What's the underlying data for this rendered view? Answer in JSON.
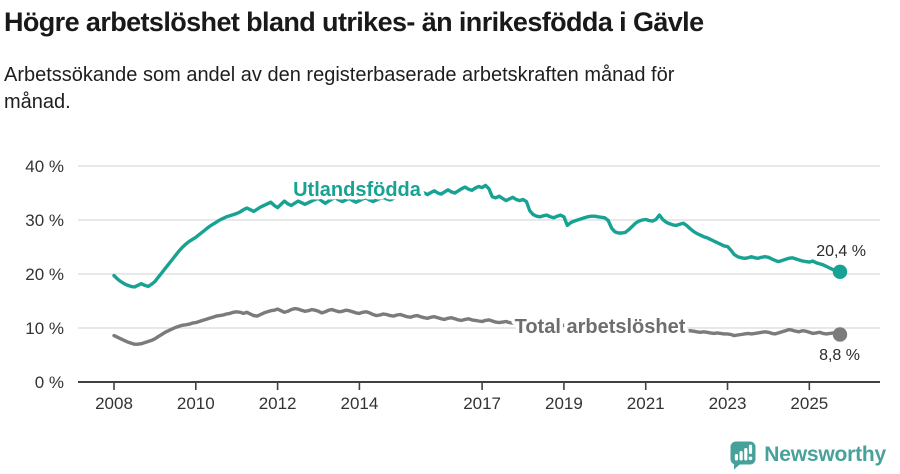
{
  "header": {
    "title": "Högre arbetslöshet bland utrikes- än inrikesfödda i Gävle",
    "subtitle": "Arbetssökande som andel av den registerbaserade arbetskraften månad för månad."
  },
  "chart_data": {
    "type": "line",
    "title": "Högre arbetslöshet bland utrikes- än inrikesfödda i Gävle",
    "subtitle": "Arbetssökande som andel av den registerbaserade arbetskraften månad för månad.",
    "xlabel": "",
    "ylabel": "",
    "x_interval": "month",
    "x_range": [
      "2008-01",
      "2025-10"
    ],
    "ylim": [
      0,
      40
    ],
    "grid": "horizontal",
    "legend_position": "inline-labels",
    "y_axis": {
      "ticks": [
        {
          "value": 0,
          "label": "0 %"
        },
        {
          "value": 10,
          "label": "10 %"
        },
        {
          "value": 20,
          "label": "20 %"
        },
        {
          "value": 30,
          "label": "30 %"
        },
        {
          "value": 40,
          "label": "40 %"
        }
      ]
    },
    "x_axis": {
      "ticks": [
        {
          "year": 2008,
          "label": "2008"
        },
        {
          "year": 2010,
          "label": "2010"
        },
        {
          "year": 2012,
          "label": "2012"
        },
        {
          "year": 2014,
          "label": "2014"
        },
        {
          "year": 2017,
          "label": "2017"
        },
        {
          "year": 2019,
          "label": "2019"
        },
        {
          "year": 2021,
          "label": "2021"
        },
        {
          "year": 2023,
          "label": "2023"
        },
        {
          "year": 2025,
          "label": "2025"
        }
      ]
    },
    "series": [
      {
        "name": "Utlandsfödda",
        "color": "#18a294",
        "end_label": "20,4 %",
        "end_value": 20.4,
        "values": [
          19.7,
          19.1,
          18.6,
          18.2,
          17.9,
          17.7,
          17.6,
          17.9,
          18.2,
          17.9,
          17.7,
          18.1,
          18.6,
          19.4,
          20.2,
          21.0,
          21.8,
          22.6,
          23.4,
          24.2,
          24.9,
          25.5,
          26.0,
          26.4,
          26.8,
          27.3,
          27.8,
          28.3,
          28.8,
          29.2,
          29.6,
          30.0,
          30.3,
          30.6,
          30.8,
          31.0,
          31.2,
          31.5,
          31.9,
          32.2,
          31.9,
          31.6,
          32.0,
          32.4,
          32.7,
          33.0,
          33.3,
          32.7,
          32.3,
          32.9,
          33.5,
          33.0,
          32.7,
          33.1,
          33.5,
          33.2,
          32.9,
          33.2,
          33.5,
          33.8,
          34.0,
          33.5,
          33.1,
          33.5,
          33.9,
          34.1,
          33.7,
          33.4,
          33.7,
          34.0,
          33.6,
          33.3,
          33.6,
          33.9,
          34.1,
          33.7,
          33.4,
          33.7,
          34.0,
          34.2,
          33.9,
          33.7,
          34.0,
          34.3,
          34.5,
          34.2,
          34.6,
          34.9,
          34.6,
          34.4,
          34.7,
          35.0,
          34.7,
          35.1,
          35.4,
          35.0,
          34.8,
          35.2,
          35.6,
          35.2,
          35.0,
          35.4,
          35.8,
          36.1,
          35.7,
          35.5,
          35.9,
          36.2,
          36.0,
          36.4,
          35.8,
          34.3,
          34.1,
          34.4,
          34.0,
          33.6,
          33.9,
          34.2,
          33.8,
          33.6,
          33.8,
          33.4,
          31.7,
          31.0,
          30.7,
          30.6,
          30.8,
          30.9,
          30.6,
          30.4,
          30.7,
          30.9,
          30.6,
          29.0,
          29.5,
          29.8,
          30.0,
          30.2,
          30.4,
          30.6,
          30.7,
          30.7,
          30.6,
          30.5,
          30.4,
          29.9,
          28.5,
          27.8,
          27.6,
          27.6,
          27.7,
          28.2,
          28.8,
          29.4,
          29.8,
          30.0,
          30.1,
          29.9,
          29.8,
          30.1,
          30.9,
          30.1,
          29.6,
          29.3,
          29.1,
          29.0,
          29.2,
          29.4,
          29.0,
          28.4,
          27.9,
          27.5,
          27.2,
          26.9,
          26.7,
          26.4,
          26.1,
          25.8,
          25.5,
          25.2,
          25.1,
          24.4,
          23.6,
          23.2,
          23.0,
          22.9,
          23.0,
          23.2,
          23.0,
          22.9,
          23.1,
          23.2,
          23.1,
          22.8,
          22.5,
          22.3,
          22.5,
          22.7,
          22.9,
          23.0,
          22.8,
          22.6,
          22.4,
          22.3,
          22.2,
          22.4,
          22.1,
          21.9,
          21.7,
          21.4,
          21.1,
          20.8,
          20.6,
          20.4
        ]
      },
      {
        "name": "Total arbetslöshet",
        "color": "#7b7b7b",
        "end_label": "8,8 %",
        "end_value": 8.8,
        "values": [
          8.6,
          8.3,
          8.0,
          7.7,
          7.4,
          7.2,
          7.0,
          7.0,
          7.1,
          7.3,
          7.5,
          7.7,
          8.0,
          8.4,
          8.8,
          9.2,
          9.5,
          9.8,
          10.1,
          10.3,
          10.5,
          10.6,
          10.7,
          10.9,
          11.0,
          11.2,
          11.4,
          11.6,
          11.8,
          12.0,
          12.2,
          12.3,
          12.4,
          12.6,
          12.7,
          12.9,
          13.0,
          12.9,
          12.7,
          12.9,
          12.6,
          12.3,
          12.2,
          12.5,
          12.8,
          13.0,
          13.2,
          13.3,
          13.5,
          13.2,
          12.9,
          13.1,
          13.4,
          13.6,
          13.5,
          13.3,
          13.1,
          13.2,
          13.4,
          13.3,
          13.1,
          12.8,
          13.0,
          13.3,
          13.4,
          13.2,
          13.0,
          13.1,
          13.3,
          13.2,
          13.0,
          12.8,
          12.7,
          12.9,
          13.0,
          12.8,
          12.5,
          12.3,
          12.4,
          12.6,
          12.5,
          12.3,
          12.2,
          12.4,
          12.5,
          12.3,
          12.1,
          12.0,
          12.2,
          12.3,
          12.1,
          11.9,
          11.8,
          12.0,
          12.1,
          11.9,
          11.7,
          11.6,
          11.8,
          11.9,
          11.7,
          11.5,
          11.4,
          11.6,
          11.7,
          11.5,
          11.4,
          11.3,
          11.2,
          11.4,
          11.5,
          11.3,
          11.1,
          11.0,
          11.1,
          11.2,
          11.0,
          10.9,
          11.0,
          11.1,
          11.0,
          10.8,
          10.7,
          10.8,
          10.9,
          10.7,
          10.5,
          10.6,
          10.7,
          10.6,
          10.5,
          10.4,
          10.5,
          10.6,
          10.4,
          10.3,
          10.4,
          10.5,
          10.3,
          10.2,
          10.3,
          10.4,
          10.3,
          10.2,
          10.3,
          10.5,
          10.8,
          11.0,
          11.2,
          11.1,
          10.9,
          10.8,
          10.6,
          10.4,
          10.2,
          10.0,
          9.9,
          9.8,
          9.7,
          9.6,
          9.7,
          9.6,
          9.5,
          9.4,
          9.5,
          9.4,
          9.5,
          9.4,
          9.4,
          9.5,
          9.4,
          9.3,
          9.2,
          9.3,
          9.2,
          9.1,
          9.0,
          9.1,
          9.0,
          8.9,
          8.9,
          8.8,
          8.6,
          8.7,
          8.8,
          8.9,
          9.0,
          8.9,
          9.0,
          9.1,
          9.2,
          9.3,
          9.2,
          9.0,
          8.9,
          9.1,
          9.3,
          9.5,
          9.7,
          9.6,
          9.4,
          9.3,
          9.5,
          9.4,
          9.2,
          9.0,
          9.1,
          9.2,
          9.0,
          8.9,
          9.0,
          9.1,
          8.9,
          8.8
        ]
      }
    ],
    "colors": {
      "grid": "#d9d9d9",
      "axis": "#414141",
      "tick_text": "#333333"
    }
  },
  "footer": {
    "brand": "Newsworthy",
    "brand_color": "#47a29a",
    "icon": "bar-chart-speech-bubble-icon"
  }
}
